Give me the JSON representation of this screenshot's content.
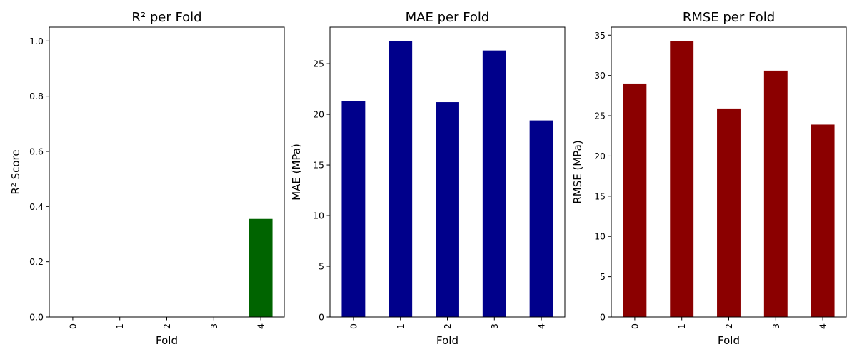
{
  "chart_data": [
    {
      "type": "bar",
      "title": "R² per Fold",
      "xlabel": "Fold",
      "ylabel": "R² Score",
      "categories": [
        "0",
        "1",
        "2",
        "3",
        "4"
      ],
      "values": [
        0,
        0,
        0,
        0,
        0.355
      ],
      "ylim": [
        0,
        1.05
      ],
      "yticks": [
        0.0,
        0.2,
        0.4,
        0.6,
        0.8,
        1.0
      ],
      "ytick_labels": [
        "0.0",
        "0.2",
        "0.4",
        "0.6",
        "0.8",
        "1.0"
      ],
      "color": "#006400",
      "grid": false,
      "legend": false
    },
    {
      "type": "bar",
      "title": "MAE per Fold",
      "xlabel": "Fold",
      "ylabel": "MAE (MPa)",
      "categories": [
        "0",
        "1",
        "2",
        "3",
        "4"
      ],
      "values": [
        21.3,
        27.2,
        21.2,
        26.3,
        19.4
      ],
      "ylim": [
        0,
        28.6
      ],
      "yticks": [
        0,
        5,
        10,
        15,
        20,
        25
      ],
      "ytick_labels": [
        "0",
        "5",
        "10",
        "15",
        "20",
        "25"
      ],
      "color": "#00008B",
      "grid": false,
      "legend": false
    },
    {
      "type": "bar",
      "title": "RMSE per Fold",
      "xlabel": "Fold",
      "ylabel": "RMSE (MPa)",
      "categories": [
        "0",
        "1",
        "2",
        "3",
        "4"
      ],
      "values": [
        29.0,
        34.3,
        25.9,
        30.6,
        23.9
      ],
      "ylim": [
        0,
        36.0
      ],
      "yticks": [
        0,
        5,
        10,
        15,
        20,
        25,
        30,
        35
      ],
      "ytick_labels": [
        "0",
        "5",
        "10",
        "15",
        "20",
        "25",
        "30",
        "35"
      ],
      "color": "#8B0000",
      "grid": false,
      "legend": false
    }
  ]
}
